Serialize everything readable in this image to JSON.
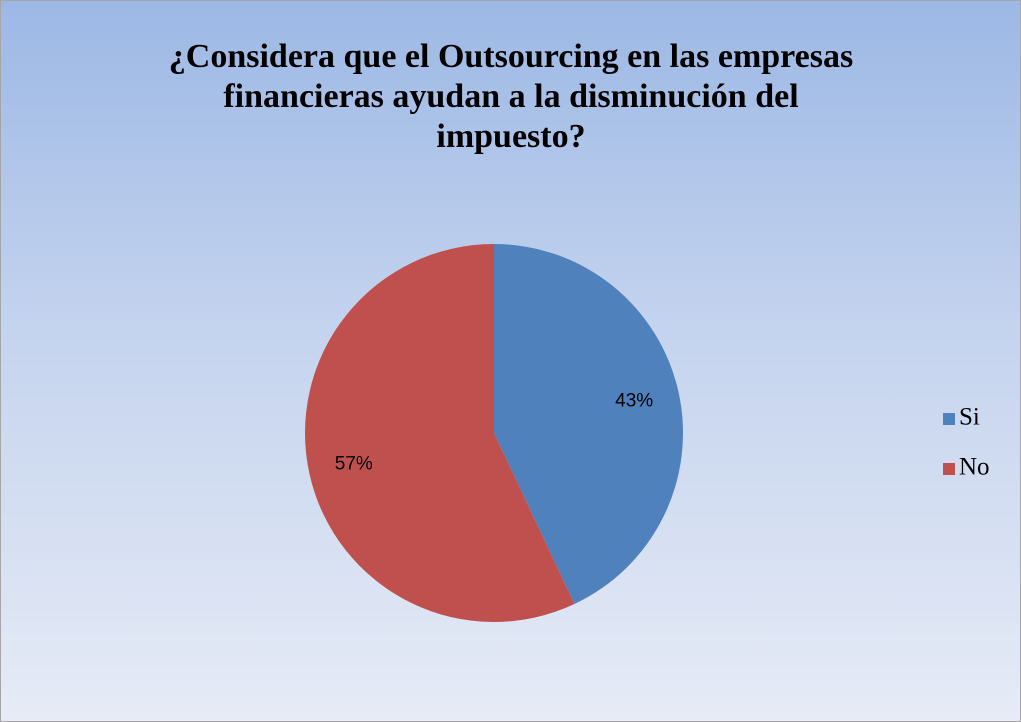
{
  "chart_data": {
    "type": "pie",
    "title": "¿Considera que el Outsourcing en las empresas financieras ayudan a la disminución del impuesto?",
    "categories": [
      "Si",
      "No"
    ],
    "values": [
      43,
      57
    ],
    "value_labels": [
      "43%",
      "57%"
    ],
    "colors": [
      "#4f81bd",
      "#c0504d"
    ],
    "legend": "right"
  }
}
